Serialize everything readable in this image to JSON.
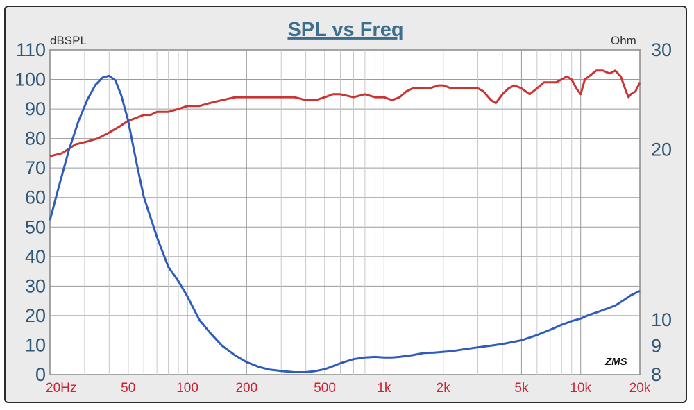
{
  "chart_data": {
    "type": "line",
    "title": "SPL vs Freq",
    "ylabel_left": "dBSPL",
    "ylabel_right": "Ohm",
    "x_scale": "log",
    "xlim": [
      20,
      20000
    ],
    "ylim_left": [
      0,
      110
    ],
    "ylim_right": [
      8,
      30
    ],
    "yticks_left": [
      0,
      10,
      20,
      30,
      40,
      50,
      60,
      70,
      80,
      90,
      100,
      110
    ],
    "yticks_left_labels": [
      "0",
      "10",
      "20",
      "30",
      "40",
      "50",
      "60",
      "70",
      "80",
      "90",
      "100",
      "110"
    ],
    "yticks_right": [
      8,
      9,
      10,
      20,
      30
    ],
    "yticks_right_labels": [
      "8",
      "9",
      "10",
      "20",
      "30"
    ],
    "xticks": [
      20,
      50,
      100,
      200,
      500,
      1000,
      2000,
      5000,
      10000,
      20000
    ],
    "xtick_labels": [
      "20Hz",
      "50",
      "100",
      "200",
      "500",
      "1k",
      "2k",
      "5k",
      "10k",
      "20k"
    ],
    "grid": true,
    "logo_text": "ZMS",
    "series": [
      {
        "axis": "left",
        "color": "#cc3333",
        "x": [
          20,
          23,
          27,
          31,
          35,
          40,
          45,
          50,
          55,
          60,
          65,
          70,
          80,
          90,
          100,
          115,
          130,
          150,
          175,
          200,
          230,
          260,
          300,
          330,
          350,
          400,
          450,
          500,
          550,
          600,
          700,
          800,
          900,
          1000,
          1100,
          1200,
          1300,
          1400,
          1500,
          1700,
          1900,
          2000,
          2200,
          2500,
          2800,
          3000,
          3200,
          3500,
          3700,
          4000,
          4300,
          4600,
          5000,
          5500,
          6000,
          6500,
          7000,
          7500,
          8000,
          8500,
          9000,
          9500,
          10000,
          10500,
          11000,
          12000,
          13000,
          14000,
          15000,
          16000,
          17000,
          17500,
          18000,
          19000,
          20000
        ],
        "y": [
          74,
          75,
          78,
          79,
          80,
          82,
          84,
          86,
          87,
          88,
          88,
          89,
          89,
          90,
          91,
          91,
          92,
          93,
          94,
          94,
          94,
          94,
          94,
          94,
          94,
          93,
          93,
          94,
          95,
          95,
          94,
          95,
          94,
          94,
          93,
          94,
          96,
          97,
          97,
          97,
          98,
          98,
          97,
          97,
          97,
          97,
          96,
          93,
          92,
          95,
          97,
          98,
          97,
          95,
          97,
          99,
          99,
          99,
          100,
          101,
          100,
          97,
          95,
          100,
          101,
          103,
          103,
          102,
          103,
          101,
          96,
          94,
          95,
          96,
          99
        ]
      },
      {
        "axis": "right",
        "color": "#2f5bbd",
        "x": [
          20,
          22,
          25,
          28,
          31,
          34,
          37,
          40,
          43,
          46,
          50,
          55,
          60,
          70,
          80,
          90,
          100,
          115,
          130,
          150,
          175,
          200,
          230,
          260,
          300,
          350,
          400,
          450,
          500,
          550,
          600,
          700,
          800,
          900,
          1000,
          1100,
          1200,
          1400,
          1600,
          1800,
          2000,
          2200,
          2500,
          3000,
          3500,
          4000,
          5000,
          6000,
          7000,
          8000,
          9000,
          10000,
          11000,
          12000,
          13000,
          14000,
          15000,
          16000,
          17000,
          18000,
          19000,
          20000
        ],
        "y": [
          15.0,
          17.0,
          20.0,
          22.5,
          24.5,
          26.0,
          26.8,
          27.0,
          26.5,
          25.0,
          22.5,
          19.0,
          16.5,
          14.0,
          12.4,
          11.7,
          11.0,
          10.0,
          9.5,
          9.0,
          8.65,
          8.42,
          8.26,
          8.17,
          8.12,
          8.08,
          8.08,
          8.12,
          8.18,
          8.28,
          8.38,
          8.52,
          8.58,
          8.6,
          8.58,
          8.58,
          8.6,
          8.66,
          8.74,
          8.75,
          8.78,
          8.8,
          8.86,
          8.94,
          9.0,
          9.06,
          9.2,
          9.4,
          9.6,
          9.8,
          9.95,
          10.05,
          10.2,
          10.3,
          10.4,
          10.5,
          10.6,
          10.75,
          10.9,
          11.05,
          11.15,
          11.25
        ]
      }
    ]
  }
}
